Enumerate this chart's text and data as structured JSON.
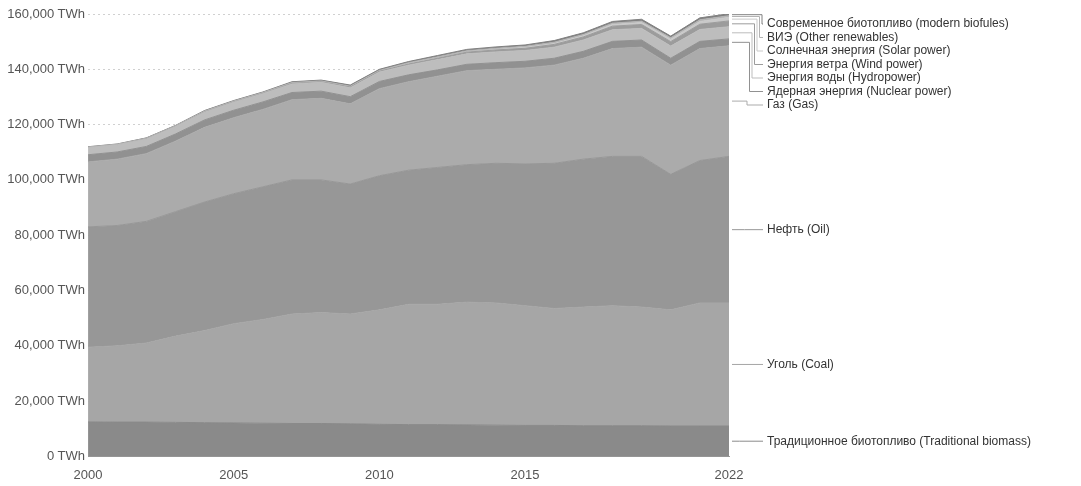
{
  "chart_data": {
    "type": "area",
    "stacked": true,
    "legend": "right",
    "grid": "y",
    "marker": "none",
    "x": [
      2000,
      2001,
      2002,
      2003,
      2004,
      2005,
      2006,
      2007,
      2008,
      2009,
      2010,
      2011,
      2012,
      2013,
      2014,
      2015,
      2016,
      2017,
      2018,
      2019,
      2020,
      2021,
      2022
    ],
    "xlim": [
      2000,
      2022
    ],
    "xticks": [
      2000,
      2005,
      2010,
      2015,
      2022
    ],
    "ylim": [
      0,
      160000
    ],
    "yticks": [
      {
        "value": 0,
        "label": "0 TWh"
      },
      {
        "value": 20000,
        "label": "20,000 TWh"
      },
      {
        "value": 40000,
        "label": "40,000 TWh"
      },
      {
        "value": 60000,
        "label": "60,000 TWh"
      },
      {
        "value": 80000,
        "label": "80,000 TWh"
      },
      {
        "value": 100000,
        "label": "100,000 TWh"
      },
      {
        "value": 120000,
        "label": "120,000 TWh"
      },
      {
        "value": 140000,
        "label": "140,000 TWh"
      },
      {
        "value": 160000,
        "label": "160,000 TWh"
      }
    ],
    "series": [
      {
        "name": "Традиционное биотопливо (Traditional biomass)",
        "color": "#8a8a8a",
        "values": [
          12500,
          12400,
          12400,
          12300,
          12200,
          12100,
          12000,
          11900,
          11900,
          11800,
          11600,
          11500,
          11500,
          11400,
          11300,
          11200,
          11200,
          11100,
          11100,
          11100,
          11000,
          11000,
          11000
        ]
      },
      {
        "name": "Уголь (Coal)",
        "color": "#a6a6a6",
        "values": [
          27000,
          27600,
          28600,
          31200,
          33300,
          35900,
          37500,
          39600,
          40100,
          39700,
          41400,
          43500,
          43500,
          44400,
          44200,
          43300,
          42300,
          42900,
          43400,
          42900,
          42000,
          44500,
          44500
        ]
      },
      {
        "name": "Нефть (Oil)",
        "color": "#979797",
        "values": [
          43500,
          43500,
          44000,
          45000,
          46500,
          47000,
          48000,
          48500,
          48000,
          47000,
          48500,
          48500,
          49500,
          49700,
          50500,
          51300,
          52500,
          53500,
          54000,
          54500,
          49000,
          51500,
          53000
        ]
      },
      {
        "name": "Газ (Gas)",
        "color": "#ababab",
        "values": [
          23500,
          24000,
          24500,
          25500,
          27000,
          27500,
          28000,
          29000,
          29500,
          29000,
          31500,
          32000,
          33000,
          34000,
          34000,
          34700,
          35500,
          36500,
          39000,
          39500,
          39500,
          40500,
          40000
        ]
      },
      {
        "name": "Ядерная энергия (Nuclear power)",
        "color": "#919191",
        "values": [
          2600,
          2600,
          2600,
          2600,
          2700,
          2700,
          2700,
          2600,
          2600,
          2600,
          2600,
          2500,
          2300,
          2300,
          2400,
          2400,
          2500,
          2500,
          2600,
          2600,
          2500,
          2600,
          2500
        ]
      },
      {
        "name": "Энергия воды (Hydropower)",
        "color": "#bdbdbd",
        "values": [
          2600,
          2600,
          2700,
          2700,
          2800,
          2900,
          3000,
          3100,
          3200,
          3200,
          3400,
          3500,
          3700,
          3800,
          3900,
          3900,
          4000,
          4100,
          4200,
          4200,
          4400,
          4300,
          4400
        ]
      },
      {
        "name": "Энергия ветра (Wind power)",
        "color": "#9c9c9c",
        "values": [
          0,
          0,
          100,
          100,
          100,
          100,
          100,
          200,
          200,
          300,
          300,
          400,
          500,
          600,
          700,
          800,
          1000,
          1100,
          1300,
          1400,
          1600,
          1900,
          2100
        ]
      },
      {
        "name": "Солнечная энергия (Solar power)",
        "color": "#c9c9c9",
        "values": [
          0,
          0,
          0,
          0,
          0,
          0,
          0,
          0,
          0,
          0,
          0,
          100,
          100,
          100,
          200,
          300,
          300,
          400,
          600,
          700,
          900,
          1000,
          1300
        ]
      },
      {
        "name": "ВИЭ (Other renewables)",
        "color": "#b3b3b3",
        "values": [
          200,
          200,
          200,
          200,
          300,
          300,
          300,
          300,
          300,
          300,
          300,
          400,
          400,
          400,
          400,
          400,
          500,
          500,
          500,
          500,
          500,
          600,
          600
        ]
      },
      {
        "name": "Современное биотопливо (modern biofules)",
        "color": "#808080",
        "values": [
          100,
          100,
          100,
          100,
          200,
          200,
          200,
          300,
          300,
          400,
          400,
          400,
          500,
          500,
          500,
          500,
          600,
          600,
          600,
          700,
          600,
          700,
          700
        ]
      }
    ]
  }
}
